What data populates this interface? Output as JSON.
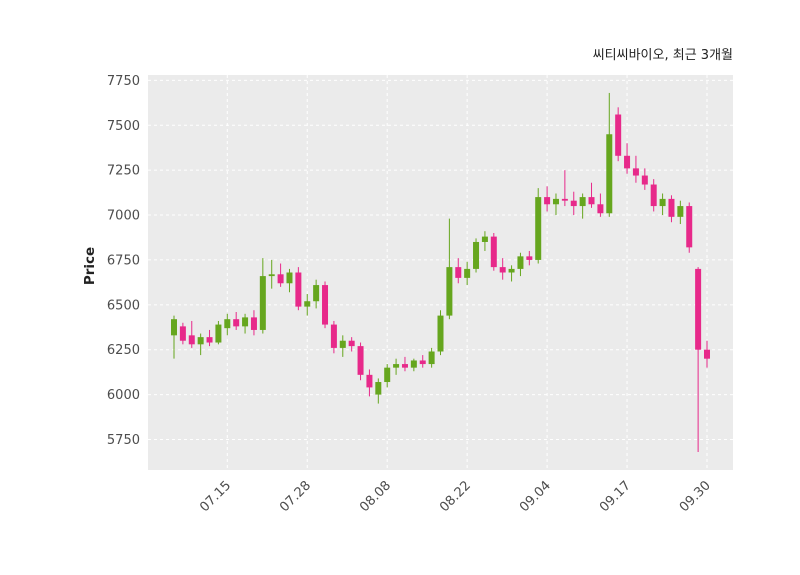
{
  "chart_data": {
    "type": "candlestick",
    "title": "씨티씨바이오, 최근 3개월",
    "ylabel": "Price",
    "xlabel": "",
    "ylim": [
      5580,
      7780
    ],
    "y_ticks": [
      5750,
      6000,
      6250,
      6500,
      6750,
      7000,
      7250,
      7500,
      7750
    ],
    "x_tick_labels": [
      "07.15",
      "07.28",
      "08.08",
      "08.22",
      "09.04",
      "09.17",
      "09.30"
    ],
    "grid": true,
    "legend": false,
    "panel_bg": "#ebebeb",
    "grid_color": "#ffffff",
    "tick_label_color": "#4d4d4d",
    "up_color": "#66a61e",
    "down_color": "#e7298a",
    "candle_columns": [
      "date",
      "open",
      "high",
      "low",
      "close"
    ],
    "candles": [
      [
        "07.07",
        6330,
        6440,
        6200,
        6420
      ],
      [
        "07.08",
        6380,
        6400,
        6280,
        6300
      ],
      [
        "07.09",
        6330,
        6410,
        6260,
        6280
      ],
      [
        "07.10",
        6280,
        6340,
        6220,
        6320
      ],
      [
        "07.11",
        6320,
        6360,
        6270,
        6290
      ],
      [
        "07.14",
        6290,
        6410,
        6280,
        6390
      ],
      [
        "07.15",
        6370,
        6450,
        6330,
        6420
      ],
      [
        "07.16",
        6420,
        6460,
        6360,
        6380
      ],
      [
        "07.17",
        6380,
        6450,
        6340,
        6430
      ],
      [
        "07.18",
        6430,
        6470,
        6330,
        6360
      ],
      [
        "07.21",
        6360,
        6760,
        6340,
        6660
      ],
      [
        "07.22",
        6660,
        6750,
        6590,
        6670
      ],
      [
        "07.23",
        6670,
        6730,
        6600,
        6620
      ],
      [
        "07.24",
        6620,
        6700,
        6570,
        6680
      ],
      [
        "07.25",
        6680,
        6710,
        6470,
        6490
      ],
      [
        "07.28",
        6490,
        6560,
        6440,
        6520
      ],
      [
        "07.29",
        6520,
        6640,
        6480,
        6610
      ],
      [
        "07.30",
        6610,
        6630,
        6370,
        6390
      ],
      [
        "07.31",
        6390,
        6410,
        6230,
        6260
      ],
      [
        "08.01",
        6260,
        6330,
        6210,
        6300
      ],
      [
        "08.04",
        6300,
        6320,
        6240,
        6270
      ],
      [
        "08.05",
        6270,
        6290,
        6080,
        6110
      ],
      [
        "08.06",
        6110,
        6140,
        5990,
        6040
      ],
      [
        "08.07",
        6000,
        6090,
        5950,
        6070
      ],
      [
        "08.08",
        6070,
        6170,
        6040,
        6150
      ],
      [
        "08.11",
        6150,
        6200,
        6110,
        6170
      ],
      [
        "08.12",
        6170,
        6210,
        6130,
        6150
      ],
      [
        "08.13",
        6150,
        6200,
        6130,
        6190
      ],
      [
        "08.14",
        6190,
        6220,
        6150,
        6170
      ],
      [
        "08.18",
        6170,
        6260,
        6150,
        6240
      ],
      [
        "08.19",
        6240,
        6470,
        6220,
        6440
      ],
      [
        "08.20",
        6440,
        6980,
        6420,
        6710
      ],
      [
        "08.21",
        6710,
        6760,
        6620,
        6650
      ],
      [
        "08.22",
        6650,
        6740,
        6610,
        6700
      ],
      [
        "08.25",
        6700,
        6870,
        6680,
        6850
      ],
      [
        "08.26",
        6850,
        6910,
        6800,
        6880
      ],
      [
        "08.27",
        6880,
        6900,
        6690,
        6710
      ],
      [
        "08.28",
        6710,
        6760,
        6640,
        6680
      ],
      [
        "08.29",
        6680,
        6720,
        6630,
        6700
      ],
      [
        "09.01",
        6700,
        6790,
        6660,
        6770
      ],
      [
        "09.02",
        6770,
        6800,
        6720,
        6750
      ],
      [
        "09.03",
        6750,
        7150,
        6730,
        7100
      ],
      [
        "09.04",
        7100,
        7160,
        7020,
        7060
      ],
      [
        "09.05",
        7060,
        7120,
        7000,
        7090
      ],
      [
        "09.08",
        7090,
        7250,
        7050,
        7080
      ],
      [
        "09.09",
        7080,
        7130,
        7000,
        7050
      ],
      [
        "09.10",
        7050,
        7120,
        6980,
        7100
      ],
      [
        "09.11",
        7100,
        7180,
        7040,
        7060
      ],
      [
        "09.12",
        7060,
        7120,
        6990,
        7010
      ],
      [
        "09.15",
        7010,
        7680,
        6990,
        7450
      ],
      [
        "09.16",
        7560,
        7600,
        7300,
        7330
      ],
      [
        "09.17",
        7330,
        7400,
        7230,
        7260
      ],
      [
        "09.18",
        7260,
        7330,
        7180,
        7220
      ],
      [
        "09.19",
        7220,
        7260,
        7140,
        7170
      ],
      [
        "09.22",
        7170,
        7200,
        7020,
        7050
      ],
      [
        "09.23",
        7050,
        7120,
        7000,
        7090
      ],
      [
        "09.24",
        7090,
        7110,
        6960,
        6990
      ],
      [
        "09.25",
        6990,
        7080,
        6950,
        7050
      ],
      [
        "09.26",
        7050,
        7070,
        6790,
        6820
      ],
      [
        "09.29",
        6700,
        6710,
        5680,
        6250
      ],
      [
        "09.30",
        6250,
        6300,
        6150,
        6200
      ]
    ]
  }
}
